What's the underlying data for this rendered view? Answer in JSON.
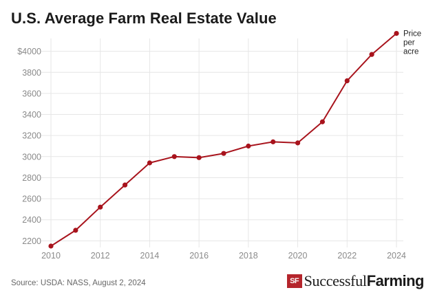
{
  "chart_data": {
    "type": "line",
    "title": "U.S. Average Farm Real Estate Value",
    "x": [
      2010,
      2011,
      2012,
      2013,
      2014,
      2015,
      2016,
      2017,
      2018,
      2019,
      2020,
      2021,
      2022,
      2023,
      2024
    ],
    "series": [
      {
        "name": "Price per acre",
        "values": [
          2150,
          2300,
          2520,
          2730,
          2940,
          3000,
          2990,
          3030,
          3100,
          3140,
          3130,
          3330,
          3720,
          3970,
          4170
        ]
      }
    ],
    "xlim": [
      2010,
      2024
    ],
    "ylim": [
      2150,
      4200
    ],
    "x_ticks": [
      2010,
      2012,
      2014,
      2016,
      2018,
      2020,
      2022,
      2024
    ],
    "y_ticks": [
      2200,
      2400,
      2600,
      2800,
      3000,
      3200,
      3400,
      3600,
      3800,
      4000
    ],
    "y_tick_labels": [
      "2200",
      "2400",
      "2600",
      "2800",
      "3000",
      "3200",
      "3400",
      "3600",
      "3800",
      "$4000"
    ],
    "series_label_lines": [
      "Price",
      "per",
      "acre"
    ],
    "grid": true,
    "line_color": "#a8131c",
    "grid_color": "#e6e6e6"
  },
  "footer": {
    "source": "Source: USDA: NASS, August 2, 2024",
    "logo_mark": "SF",
    "logo_word1": "Successful",
    "logo_word2": "Farming"
  }
}
